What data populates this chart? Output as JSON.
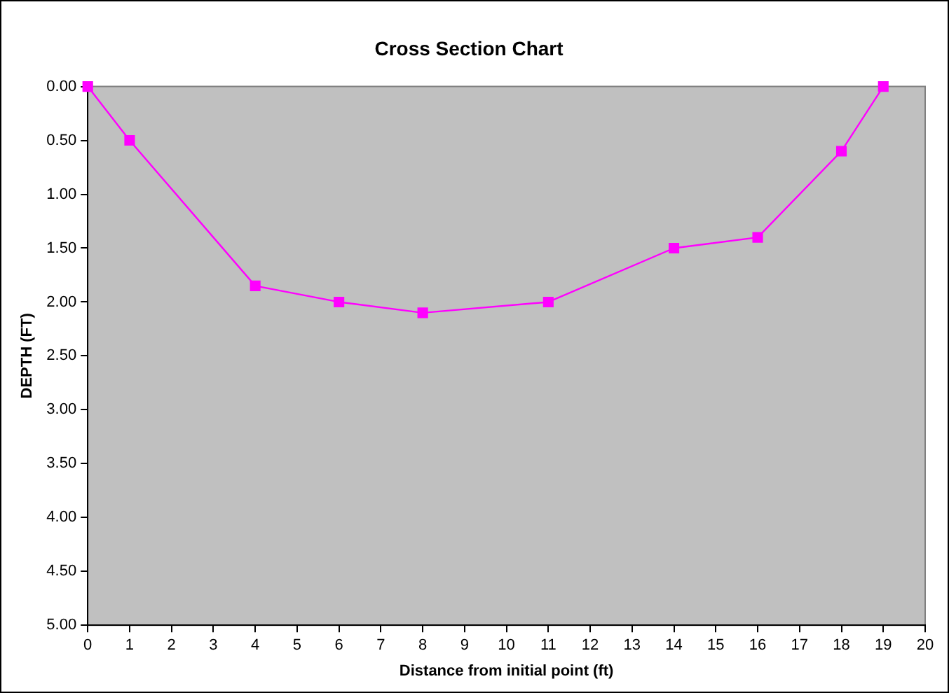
{
  "chart_data": {
    "type": "line",
    "title": "Cross Section Chart",
    "xlabel": "Distance from initial point (ft)",
    "ylabel": "DEPTH (FT)",
    "x": [
      0,
      1,
      4,
      6,
      8,
      11,
      14,
      16,
      18,
      19
    ],
    "series": [
      {
        "color": "#ff00ff",
        "values": [
          0,
          0.5,
          1.85,
          2.0,
          2.1,
          2.0,
          1.5,
          1.4,
          0.6,
          0
        ]
      }
    ],
    "xlim": [
      0,
      20
    ],
    "xticks": [
      0,
      1,
      2,
      3,
      4,
      5,
      6,
      7,
      8,
      9,
      10,
      11,
      12,
      13,
      14,
      15,
      16,
      17,
      18,
      19,
      20
    ],
    "ylim": [
      5,
      0
    ],
    "yticks": [
      {
        "value": 0,
        "label": "0.00"
      },
      {
        "value": 0.5,
        "label": "0.50"
      },
      {
        "value": 1,
        "label": "1.00"
      },
      {
        "value": 1.5,
        "label": "1.50"
      },
      {
        "value": 2,
        "label": "2.00"
      },
      {
        "value": 2.5,
        "label": "2.50"
      },
      {
        "value": 3,
        "label": "3.00"
      },
      {
        "value": 3.5,
        "label": "3.50"
      },
      {
        "value": 4,
        "label": "4.00"
      },
      {
        "value": 4.5,
        "label": "4.50"
      },
      {
        "value": 5,
        "label": "5.00"
      }
    ],
    "grid": false,
    "legend": false,
    "marker": "square",
    "line_style": "solid"
  }
}
